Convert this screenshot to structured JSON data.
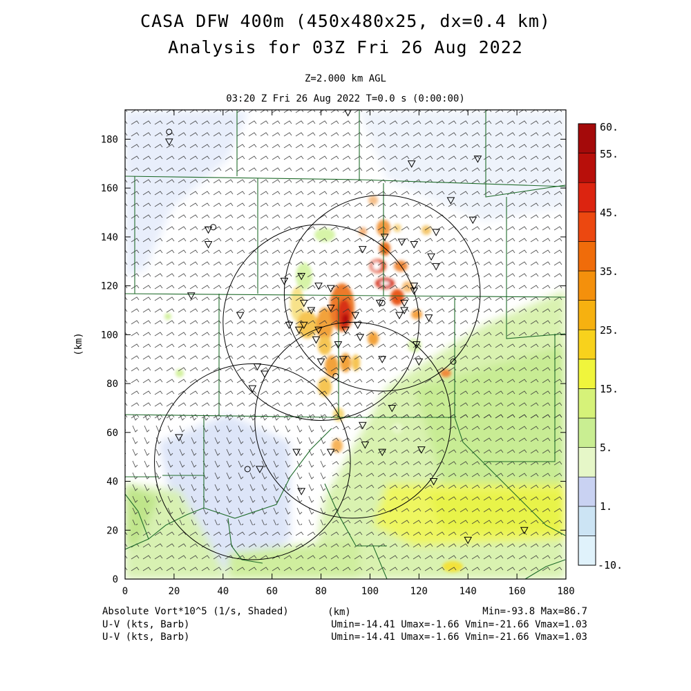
{
  "title_line1": "CASA DFW 400m (450x480x25, dx=0.4 km)",
  "title_line2": "Analysis for 03Z Fri 26 Aug 2022",
  "level_label": "Z=2.000 km AGL",
  "time_label": "03:20 Z Fri 26 Aug 2022    T=0.0 s (0:00:00)",
  "x_axis_label": "(km)",
  "y_axis_label": "(km)",
  "footer": {
    "shaded_field": "Absolute Vort*10^5 (1/s, Shaded)",
    "barb_field_1": "U-V (kts, Barb)",
    "barb_field_2": "U-V (kts, Barb)",
    "minmax": "Min=-93.8 Max=86.7",
    "uv_stats_1": "Umin=-14.41 Umax=-1.66 Vmin=-21.66 Vmax=1.03",
    "uv_stats_2": "Umin=-14.41 Umax=-1.66 Vmin=-21.66 Vmax=1.03"
  },
  "chart_data": {
    "type": "heatmap",
    "xlim": [
      0,
      180
    ],
    "ylim": [
      0,
      192
    ],
    "x_ticks": [
      0,
      20,
      40,
      60,
      80,
      100,
      120,
      140,
      160,
      180
    ],
    "y_ticks": [
      0,
      20,
      40,
      60,
      80,
      100,
      120,
      140,
      160,
      180
    ],
    "colorbar": {
      "labels": [
        "60.",
        "55.",
        "45.",
        "35.",
        "25.",
        "15.",
        "5.",
        "1.",
        "-10."
      ],
      "colors": [
        "#e0f2fb",
        "#cce4f4",
        "#c9d2f2",
        "#e6f7c8",
        "#c9ee92",
        "#d6f279",
        "#f0f53c",
        "#f8d21c",
        "#f6b110",
        "#f4900c",
        "#f06c0a",
        "#ec4810",
        "#dc2410",
        "#b80f0a",
        "#a40a0a"
      ]
    },
    "radar_circles_km": [
      {
        "cx": 105,
        "cy": 117,
        "r": 40
      },
      {
        "cx": 80,
        "cy": 105,
        "r": 40
      },
      {
        "cx": 93,
        "cy": 65,
        "r": 40
      },
      {
        "cx": 52,
        "cy": 48,
        "r": 40
      }
    ],
    "station_markers_km": [
      [
        18,
        179
      ],
      [
        91,
        191
      ],
      [
        117,
        170
      ],
      [
        144,
        172
      ],
      [
        133,
        155
      ],
      [
        142,
        147
      ],
      [
        127,
        142
      ],
      [
        34,
        143
      ],
      [
        34,
        137
      ],
      [
        72,
        124
      ],
      [
        65,
        122
      ],
      [
        79,
        120
      ],
      [
        84,
        119
      ],
      [
        97,
        135
      ],
      [
        106,
        140
      ],
      [
        113,
        138
      ],
      [
        118,
        137
      ],
      [
        125,
        132
      ],
      [
        127,
        128
      ],
      [
        118,
        120
      ],
      [
        114,
        113
      ],
      [
        104,
        113
      ],
      [
        124,
        107
      ],
      [
        112,
        108
      ],
      [
        73,
        113
      ],
      [
        76,
        110
      ],
      [
        84,
        111
      ],
      [
        90,
        102
      ],
      [
        95,
        104
      ],
      [
        79,
        102
      ],
      [
        73,
        104
      ],
      [
        67,
        104
      ],
      [
        71,
        102
      ],
      [
        78,
        98
      ],
      [
        87,
        96
      ],
      [
        96,
        99
      ],
      [
        119,
        96
      ],
      [
        120,
        89
      ],
      [
        54,
        87
      ],
      [
        57,
        84
      ],
      [
        89,
        90
      ],
      [
        105,
        90
      ],
      [
        80,
        89
      ],
      [
        52,
        78
      ],
      [
        109,
        70
      ],
      [
        97,
        63
      ],
      [
        22,
        58
      ],
      [
        70,
        52
      ],
      [
        84,
        52
      ],
      [
        98,
        55
      ],
      [
        105,
        52
      ],
      [
        121,
        53
      ],
      [
        126,
        40
      ],
      [
        72,
        36
      ],
      [
        55,
        45
      ],
      [
        140,
        16
      ],
      [
        163,
        20
      ],
      [
        94,
        108
      ],
      [
        27,
        116
      ],
      [
        47,
        108
      ],
      [
        114,
        110
      ],
      [
        118,
        118
      ]
    ],
    "station_circles_km": [
      [
        18,
        183
      ],
      [
        36,
        144
      ],
      [
        105,
        113
      ],
      [
        134,
        89
      ],
      [
        86,
        83
      ],
      [
        50,
        45
      ]
    ]
  }
}
